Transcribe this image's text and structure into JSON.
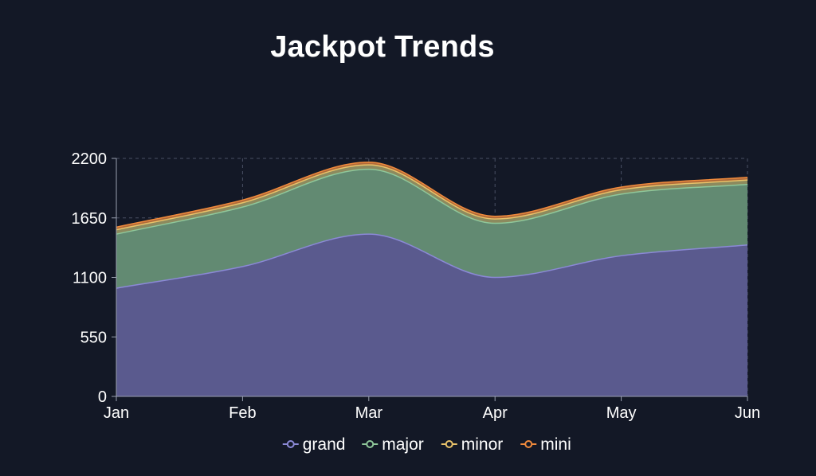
{
  "chart_data": {
    "type": "area",
    "stacked": true,
    "title": "Jackpot Trends",
    "xlabel": "",
    "ylabel": "",
    "categories": [
      "Jan",
      "Feb",
      "Mar",
      "Apr",
      "May",
      "Jun"
    ],
    "ylim": [
      0,
      2200
    ],
    "yticks": [
      0,
      550,
      1100,
      1650,
      2200
    ],
    "grid": true,
    "legend_position": "bottom",
    "series": [
      {
        "name": "grand",
        "values": [
          1000,
          1200,
          1500,
          1100,
          1300,
          1400
        ],
        "color": "#8b89d6",
        "fill": "#5a5a8e"
      },
      {
        "name": "major",
        "values": [
          500,
          550,
          600,
          500,
          570,
          560
        ],
        "color": "#8fc79a",
        "fill": "#628a72"
      },
      {
        "name": "minor",
        "values": [
          40,
          40,
          40,
          40,
          40,
          40
        ],
        "color": "#e8c26a",
        "fill": "#8c8a5e"
      },
      {
        "name": "mini",
        "values": [
          25,
          25,
          25,
          25,
          25,
          25
        ],
        "color": "#f08a3c",
        "fill": "#b06a3a"
      }
    ]
  }
}
